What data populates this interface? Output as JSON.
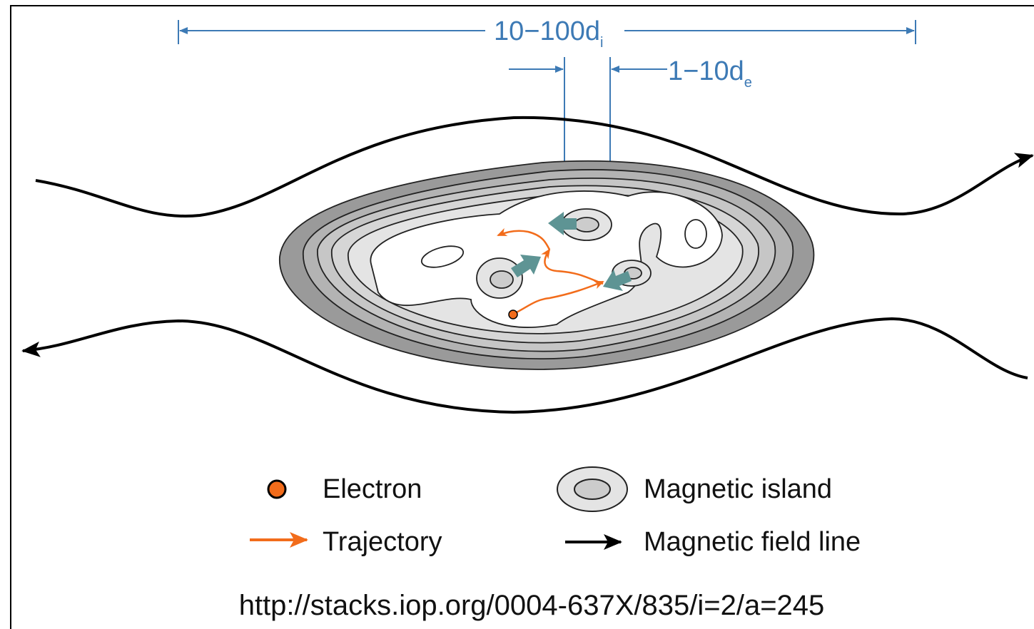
{
  "dimensions": [
    {
      "label": "10−100d",
      "subscript": "i"
    },
    {
      "label": "1−10d",
      "subscript": "e"
    }
  ],
  "legend": [
    {
      "label": "Electron"
    },
    {
      "label": "Magnetic island"
    },
    {
      "label": "Trajectory"
    },
    {
      "label": "Magnetic field line"
    }
  ],
  "source": "http://stacks.iop.org/0004-637X/835/i=2/a=245"
}
